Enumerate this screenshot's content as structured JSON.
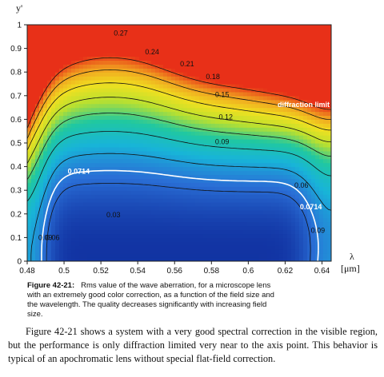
{
  "chart_data": {
    "type": "contour",
    "title": "",
    "xlabel": "λ",
    "xunit": "[μm]",
    "ylabel": "y'",
    "xlim": [
      0.48,
      0.645
    ],
    "ylim": [
      0,
      1
    ],
    "x_ticks": [
      "0.48",
      "0.5",
      "0.52",
      "0.54",
      "0.56",
      "0.58",
      "0.6",
      "0.62",
      "0.64"
    ],
    "y_ticks": [
      "0",
      "0.1",
      "0.2",
      "0.3",
      "0.4",
      "0.5",
      "0.6",
      "0.7",
      "0.8",
      "0.9",
      "1"
    ],
    "colormap": [
      "#1030a0",
      "#2a6fd6",
      "#18b4d8",
      "#20c8a0",
      "#b8e030",
      "#f0e020",
      "#f0a020",
      "#e83018"
    ],
    "contour_levels": [
      0.03,
      0.06,
      0.09,
      0.12,
      0.15,
      0.18,
      0.21,
      0.24,
      0.27
    ],
    "highlight_level": {
      "value": 0.0714,
      "label": "diffraction limit",
      "color": "#ffffff"
    },
    "contour_labels": [
      {
        "text": "0.27",
        "x": 0.527,
        "y": 0.955
      },
      {
        "text": "0.24",
        "x": 0.544,
        "y": 0.875
      },
      {
        "text": "0.21",
        "x": 0.563,
        "y": 0.825
      },
      {
        "text": "0.18",
        "x": 0.577,
        "y": 0.77
      },
      {
        "text": "0.15",
        "x": 0.582,
        "y": 0.695
      },
      {
        "text": "0.12",
        "x": 0.584,
        "y": 0.6
      },
      {
        "text": "0.09",
        "x": 0.582,
        "y": 0.495
      },
      {
        "text": "0.0714",
        "x": 0.502,
        "y": 0.37
      },
      {
        "text": "0.03",
        "x": 0.523,
        "y": 0.185
      },
      {
        "text": "0.06",
        "x": 0.49,
        "y": 0.09
      },
      {
        "text": "0.09",
        "x": 0.486,
        "y": 0.09
      },
      {
        "text": "0.06",
        "x": 0.625,
        "y": 0.31
      },
      {
        "text": "0.0714",
        "x": 0.628,
        "y": 0.22
      },
      {
        "text": "0.09",
        "x": 0.634,
        "y": 0.12
      }
    ],
    "grid": false
  },
  "caption": {
    "number": "Figure 42-21:",
    "text": "Rms value of the wave aberration, for a microscope lens with an extremely good color correction, as a function of the field size and the wavelength. The quality decreases significantly with increasing field size."
  },
  "body_text": "Figure 42-21 shows a system with a very good spectral correction in the visible region, but the performance is only diffraction limited very near to the axis point. This behavior is typical of an apochromatic lens without special flat-field correction."
}
